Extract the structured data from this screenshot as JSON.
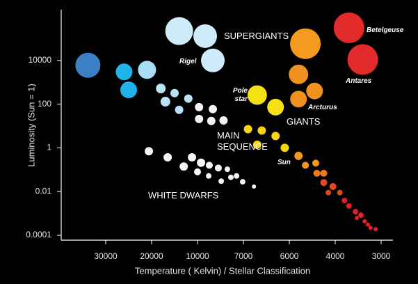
{
  "chart_data": {
    "type": "scatter",
    "x_label": "Temperature ( Kelvin) / Stellar Classification",
    "y_label": "Luminosity (Sun = 1)",
    "xlim": [
      40000,
      2700
    ],
    "xticks": [
      30000,
      20000,
      10000,
      7000,
      6000,
      4000,
      3000
    ],
    "ylim": [
      6e-05,
      1000000
    ],
    "yticks": [
      10000,
      100,
      1,
      0.01,
      0.0001
    ],
    "ylog": true,
    "background": "#000000",
    "series": [
      {
        "name": "SUPERGIANTS",
        "x": [
          34000,
          26000,
          25000,
          21000,
          14000,
          9500,
          9000,
          5300,
          3700,
          3400
        ],
        "values": [
          6000,
          3000,
          450,
          3700,
          220000,
          130000,
          10000,
          58000,
          310000,
          11000
        ],
        "sizes": [
          18,
          12,
          12,
          13,
          20,
          17,
          17,
          22,
          22,
          22
        ],
        "colors": [
          "#3b7fc4",
          "#1fb3ea",
          "#1fb3ea",
          "#a8def5",
          "#cdebf8",
          "#cdebf8",
          "#cdebf8",
          "#f39a1f",
          "#e32a2a",
          "#e32a2a"
        ],
        "point_labels": [
          null,
          null,
          null,
          null,
          null,
          null,
          "Rigel",
          null,
          "Betelgeuse",
          "Antares"
        ]
      },
      {
        "name": "GIANTS",
        "x": [
          6700,
          6300,
          5600,
          4900,
          5600
        ],
        "values": [
          260,
          73,
          2300,
          400,
          170
        ],
        "sizes": [
          14,
          12,
          14,
          12,
          12
        ],
        "colors": [
          "#f5e014",
          "#f5e014",
          "#f0901e",
          "#f0901e",
          "#f0901e"
        ],
        "point_labels": [
          "Pole star",
          null,
          null,
          null,
          "Arcturus"
        ]
      },
      {
        "name": "MAIN SEQUENCE",
        "x": [
          18000,
          17000,
          15000,
          14000,
          12000,
          9900,
          9000,
          9900,
          9100,
          8300,
          6900,
          6600,
          6700,
          6300,
          6100,
          5600,
          5300,
          4850,
          4800,
          4500,
          4500,
          4100,
          4300,
          3900,
          3800,
          3700,
          3560,
          3440,
          3530,
          3360,
          3290,
          3230,
          3120
        ],
        "values": [
          520,
          130,
          320,
          55,
          180,
          73,
          59,
          21,
          17,
          18,
          7.2,
          6.2,
          1.4,
          3.5,
          1,
          0.43,
          0.16,
          0.2,
          0.069,
          0.069,
          0.026,
          0.017,
          0.009,
          0.009,
          0.0039,
          0.0022,
          0.0012,
          0.00083,
          0.00062,
          0.00044,
          0.00031,
          0.00022,
          0.00019
        ],
        "sizes": [
          7,
          7,
          6,
          6,
          6,
          6,
          6,
          6,
          6,
          6,
          6,
          6,
          6,
          6,
          6,
          6,
          5,
          5,
          5,
          5,
          5,
          5,
          4,
          4,
          4,
          4,
          4,
          4,
          3,
          3,
          3,
          3,
          3
        ],
        "colors": [
          "#b8e2f5",
          "#b8e2f5",
          "#b8e2f5",
          "#b8e2f5",
          "#b8e2f5",
          "#f2f2f2",
          "#f2f2f2",
          "#f2f2f2",
          "#f2f2f2",
          "#f2f2f2",
          "#f7d50a",
          "#f7d50a",
          "#f7d50a",
          "#f7d50a",
          "#f7d50a",
          "#f2961c",
          "#f2961c",
          "#f2961c",
          "#ef7a1c",
          "#ef7a1c",
          "#e8481f",
          "#e8481f",
          "#e8481f",
          "#e8481f",
          "#e0202a",
          "#e0202a",
          "#e0202a",
          "#e0202a",
          "#e0202a",
          "#e0202a",
          "#e0202a",
          "#e0202a",
          "#e0202a"
        ],
        "point_labels": [
          null,
          null,
          null,
          null,
          null,
          null,
          null,
          null,
          null,
          null,
          null,
          null,
          null,
          null,
          "Sun",
          null,
          null,
          null,
          null,
          null,
          null,
          null,
          null,
          null,
          null,
          null,
          null,
          null,
          null,
          null,
          null,
          null,
          null
        ]
      },
      {
        "name": "WHITE DWARFS",
        "x": [
          20600,
          16500,
          11200,
          9770,
          13000,
          9230,
          10000,
          8640,
          9270,
          8050,
          7820,
          8450,
          7450,
          7050,
          6770
        ],
        "values": [
          0.7,
          0.37,
          0.37,
          0.21,
          0.14,
          0.16,
          0.08,
          0.12,
          0.052,
          0.105,
          0.045,
          0.03,
          0.052,
          0.028,
          0.017
        ],
        "sizes": [
          6,
          6,
          6,
          6,
          6,
          5,
          5,
          5,
          4,
          4,
          4,
          4,
          4,
          4,
          3
        ],
        "colors": [
          "#f4f4f4",
          "#f4f4f4",
          "#f4f4f4",
          "#f4f4f4",
          "#f4f4f4",
          "#f4f4f4",
          "#f4f4f4",
          "#f4f4f4",
          "#f4f4f4",
          "#f4f4f4",
          "#f4f4f4",
          "#f4f4f4",
          "#f4f4f4",
          "#f4f4f4",
          "#f4f4f4"
        ],
        "point_labels": [
          null,
          null,
          null,
          null,
          null,
          null,
          null,
          null,
          null,
          null,
          null,
          null,
          null,
          null,
          null
        ]
      }
    ]
  }
}
